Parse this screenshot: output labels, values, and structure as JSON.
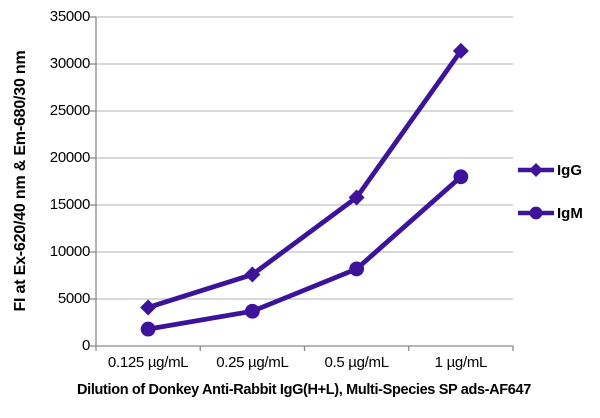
{
  "chart_data": {
    "type": "line",
    "title": "",
    "xlabel": "Dilution of Donkey Anti-Rabbit IgG(H+L), Multi-Species SP ads-AF647",
    "ylabel": "FI at Ex-620/40 nm & Em-680/30 nm",
    "categories": [
      "0.125 µg/mL",
      "0.25 µg/mL",
      "0.5 µg/mL",
      "1 µg/mL"
    ],
    "series": [
      {
        "name": "IgG",
        "marker": "diamond",
        "values": [
          4100,
          7600,
          15800,
          31400
        ]
      },
      {
        "name": "IgM",
        "marker": "circle",
        "values": [
          1800,
          3700,
          8200,
          18000
        ]
      }
    ],
    "ylim": [
      0,
      35000
    ],
    "y_tick_step": 5000,
    "y_ticks": [
      "0",
      "5000",
      "10000",
      "15000",
      "20000",
      "25000",
      "30000",
      "35000"
    ],
    "grid": "horizontal",
    "legend_position": "right",
    "colors": {
      "series": "#3d1499",
      "gridline": "#b3b3b3",
      "axis": "#8a8a8a",
      "text": "#000000"
    }
  }
}
